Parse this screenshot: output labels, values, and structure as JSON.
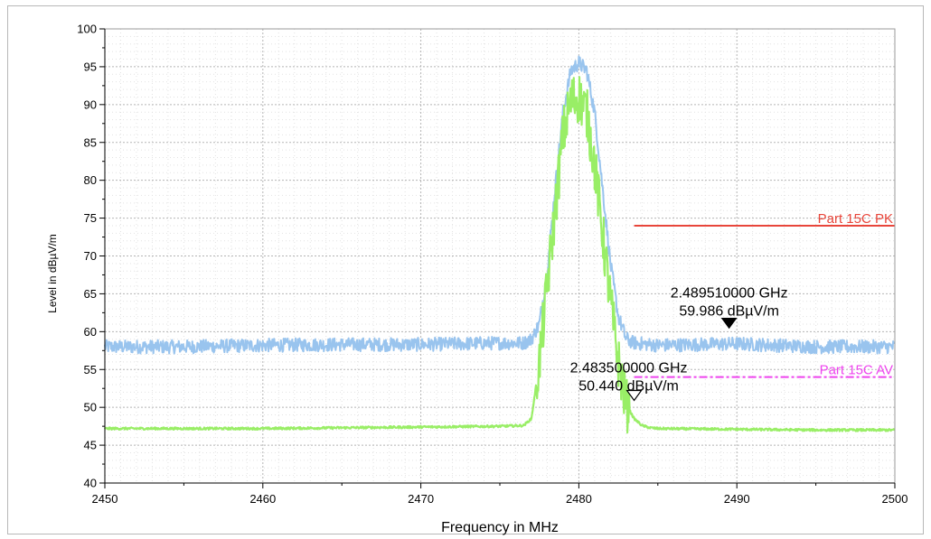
{
  "chart_data": {
    "type": "line",
    "xlabel": "Frequency in MHz",
    "ylabel": "Level in dBµV/m",
    "xlim": [
      2450,
      2500
    ],
    "ylim": [
      40,
      100
    ],
    "x_ticks": [
      "2450",
      "2460",
      "2470",
      "2480",
      "2490",
      "2500"
    ],
    "y_ticks": [
      "40",
      "45",
      "50",
      "55",
      "60",
      "65",
      "70",
      "75",
      "80",
      "85",
      "90",
      "95",
      "100"
    ],
    "grid": true,
    "series": [
      {
        "color": "#99c4ee",
        "x": [
          2450,
          2455,
          2460,
          2465,
          2470,
          2475,
          2476.5,
          2477,
          2477.5,
          2478,
          2478.5,
          2479,
          2479.5,
          2480,
          2480.5,
          2481,
          2481.5,
          2482,
          2482.5,
          2483,
          2483.5,
          2485,
          2490,
          2495,
          2500
        ],
        "y": [
          58.0,
          58.0,
          58.2,
          58.3,
          58.3,
          58.5,
          58.5,
          59.0,
          61.0,
          68.0,
          79.0,
          89.0,
          94.5,
          95.5,
          94.5,
          89.0,
          79.0,
          69.0,
          62.0,
          59.0,
          58.5,
          58.2,
          58.4,
          58.0,
          58.0
        ]
      },
      {
        "color": "#99ee66",
        "x": [
          2450,
          2455,
          2460,
          2465,
          2470,
          2475,
          2476.5,
          2477,
          2477.5,
          2478,
          2478.5,
          2479,
          2479.5,
          2480,
          2480.5,
          2481,
          2481.5,
          2482,
          2482.5,
          2483,
          2483.5,
          2484,
          2484.5,
          2485,
          2490,
          2495,
          2500
        ],
        "y": [
          47.2,
          47.2,
          47.2,
          47.3,
          47.4,
          47.5,
          47.6,
          48.5,
          56.0,
          66.0,
          76.0,
          86.0,
          90.5,
          91.0,
          89.0,
          82.0,
          73.0,
          64.0,
          56.0,
          50.4,
          48.5,
          47.6,
          47.3,
          47.2,
          47.1,
          47.0,
          47.0
        ]
      },
      {
        "name": "Part 15C PK",
        "color": "#e8463b",
        "style": "solid",
        "x": [
          2483.5,
          2500
        ],
        "y": [
          74,
          74
        ]
      },
      {
        "name": "Part 15C AV",
        "color": "#ee44ee",
        "style": "dash-dot",
        "x": [
          2483.5,
          2500
        ],
        "y": [
          54,
          54
        ]
      }
    ],
    "markers": [
      {
        "x": 2489.51,
        "y": 59.986,
        "symbol": "filled-triangle-down",
        "freq_text": "2.489510000 GHz",
        "level_text": "59.986 dBµV/m"
      },
      {
        "x": 2483.5,
        "y": 50.44,
        "symbol": "open-triangle-down",
        "freq_text": "2.483500000 GHz",
        "level_text": "50.440 dBµV/m"
      }
    ]
  }
}
